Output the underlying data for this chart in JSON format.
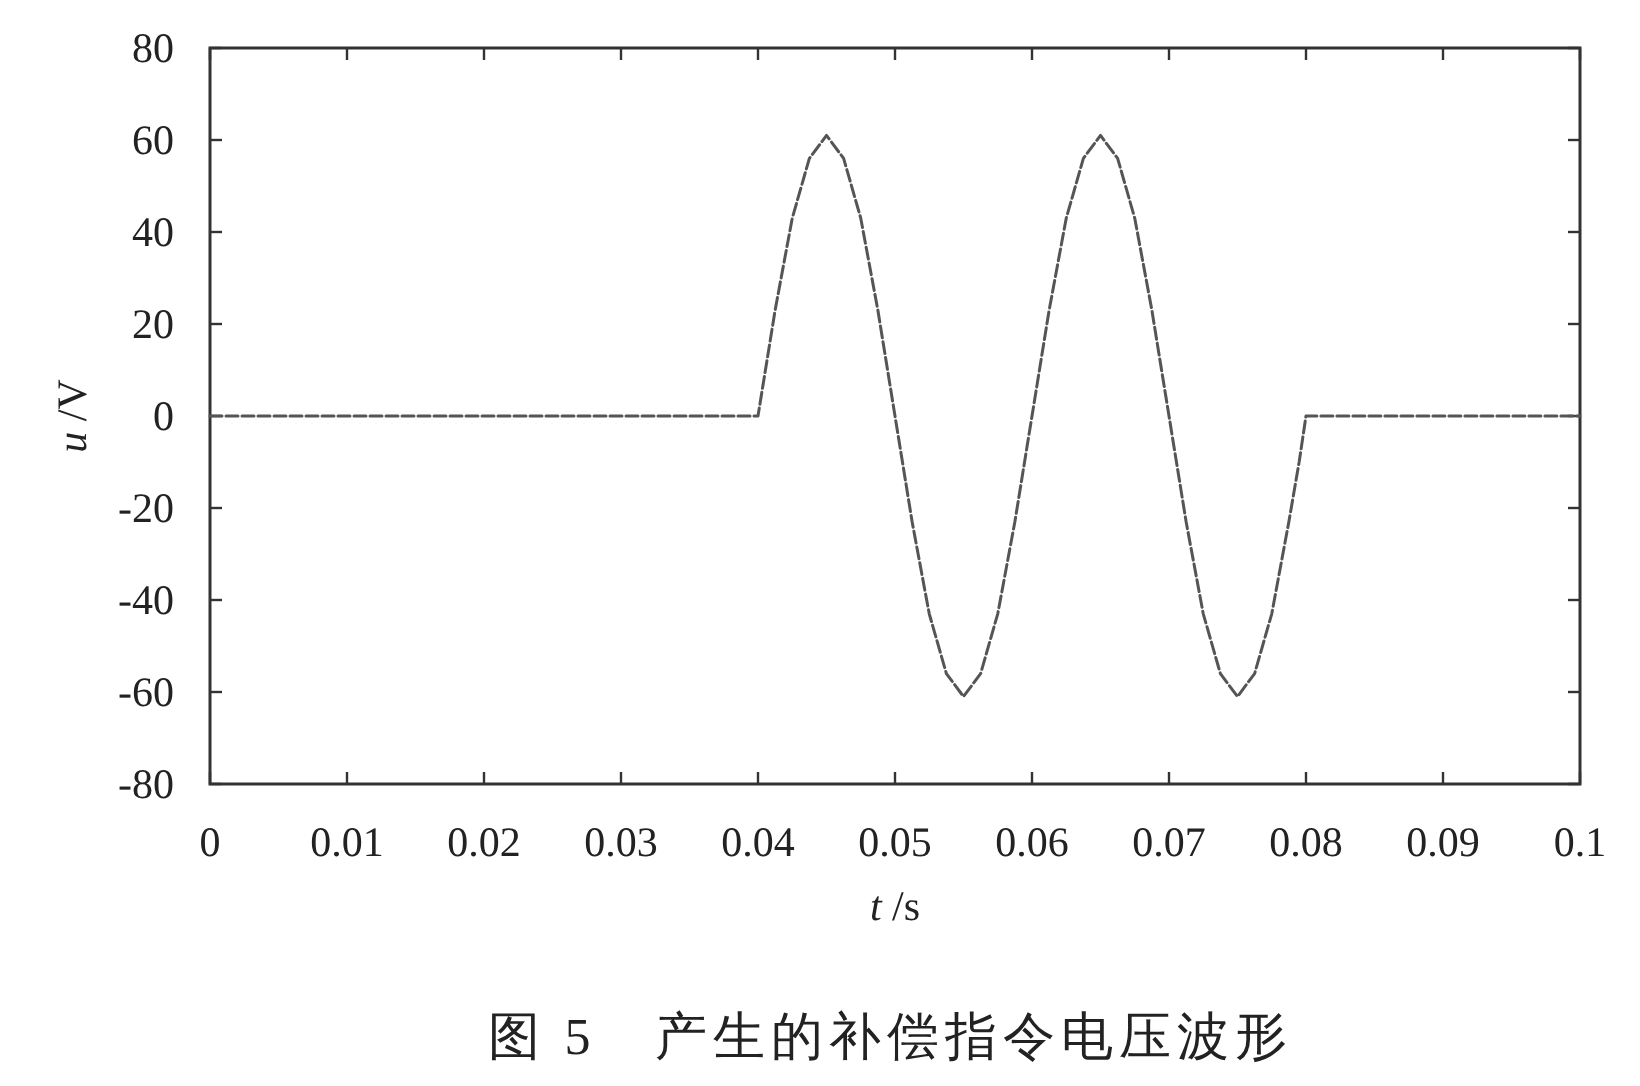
{
  "chart_data": {
    "type": "line",
    "xlabel": "*t* /s",
    "ylabel": "*u* /V",
    "annotations": [
      "图 5　产生的补偿指令电压波形"
    ],
    "xlim": [
      0,
      0.1
    ],
    "ylim": [
      -80,
      80
    ],
    "xticks": [
      0,
      0.01,
      0.02,
      0.03,
      0.04,
      0.05,
      0.06,
      0.07,
      0.08,
      0.09,
      0.1
    ],
    "yticks": [
      -80,
      -60,
      -40,
      -20,
      0,
      20,
      40,
      60,
      80
    ],
    "line_style": "dashed",
    "x": [
      0,
      0.04,
      0.04125,
      0.0425,
      0.04375,
      0.045,
      0.04625,
      0.0475,
      0.04875,
      0.05,
      0.05125,
      0.0525,
      0.05375,
      0.055,
      0.05625,
      0.0575,
      0.05875,
      0.06,
      0.06125,
      0.0625,
      0.06375,
      0.065,
      0.06625,
      0.0675,
      0.06875,
      0.07,
      0.07125,
      0.0725,
      0.07375,
      0.075,
      0.07625,
      0.0775,
      0.07875,
      0.0795,
      0.08,
      0.1
    ],
    "series": [
      {
        "color": "#555555",
        "values": [
          0,
          0,
          23,
          43,
          56,
          61,
          56,
          43,
          23,
          0,
          -23,
          -43,
          -56,
          -61,
          -56,
          -43,
          -23,
          0,
          23,
          43,
          56,
          61,
          56,
          43,
          23,
          0,
          -23,
          -43,
          -56,
          -61,
          -56,
          -43,
          -23,
          -10,
          0,
          0
        ]
      }
    ]
  }
}
